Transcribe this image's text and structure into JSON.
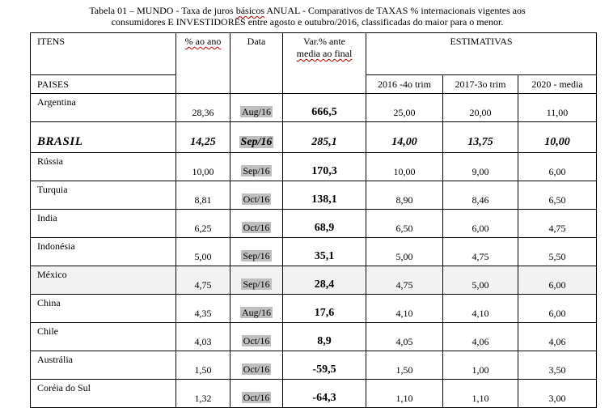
{
  "caption": {
    "line1_a": "Tabela 01 – MUNDO  - Taxa de juros ",
    "line1_sq1": "básicos",
    "line1_b": " ANUAL  - Comparativos de TAXAS  % internacionais vigentes aos",
    "line2": "consumidores E INVESTIDORES  entre agosto e outubro/2016, classificadas do maior para o menor."
  },
  "header": {
    "itens": "ITENS",
    "pct_ao_ano": "% ao ano",
    "data": "Data",
    "var_line1": "Var.% ante",
    "var_line2": "media ao final",
    "estimativas": "ESTIMATIVAS",
    "paises": "PAISES",
    "est_2016": "2016 -4o trim",
    "est_2017": "2017-3o trim",
    "est_2020": "2020 - media"
  },
  "rows": [
    {
      "pais": "Argentina",
      "pct": "28,36",
      "data": "Aug/16",
      "var": "666,5",
      "e2016": "25,00",
      "e2017": "20,00",
      "e2020": "11,00"
    },
    {
      "pais": "BRASIL",
      "pct": "14,25",
      "data": "Sep/16",
      "var": "285,1",
      "e2016": "14,00",
      "e2017": "13,75",
      "e2020": "10,00"
    },
    {
      "pais": "Rússia",
      "pct": "10,00",
      "data": "Sep/16",
      "var": "170,3",
      "e2016": "10,00",
      "e2017": "9,00",
      "e2020": "6,00"
    },
    {
      "pais": "Turquia",
      "pct": "8,81",
      "data": "Oct/16",
      "var": "138,1",
      "e2016": "8,90",
      "e2017": "8,46",
      "e2020": "6,50"
    },
    {
      "pais": "India",
      "pct": "6,25",
      "data": "Oct/16",
      "var": "68,9",
      "e2016": "6,50",
      "e2017": "6,00",
      "e2020": "4,75"
    },
    {
      "pais": "Indonésia",
      "pct": "5,00",
      "data": "Sep/16",
      "var": "35,1",
      "e2016": "5,00",
      "e2017": "4,75",
      "e2020": "5,50"
    },
    {
      "pais": "México",
      "pct": "4,75",
      "data": "Sep/16",
      "var": "28,4",
      "e2016": "4,75",
      "e2017": "5,00",
      "e2020": "6,00"
    },
    {
      "pais": "China",
      "pct": "4,35",
      "data": "Aug/16",
      "var": "17,6",
      "e2016": "4,10",
      "e2017": "4,10",
      "e2020": "6,00"
    },
    {
      "pais": "Chile",
      "pct": "4,03",
      "data": "Oct/16",
      "var": "8,9",
      "e2016": "4,05",
      "e2017": "4,06",
      "e2020": "4,06"
    },
    {
      "pais": "Austrália",
      "pct": "1,50",
      "data": "Oct/16",
      "var": "-59,5",
      "e2016": "1,50",
      "e2017": "1,00",
      "e2020": "3,50"
    },
    {
      "pais": "Coréia do Sul",
      "pct": "1,32",
      "data": "Oct/16",
      "var": "-64,3",
      "e2016": "1,10",
      "e2017": "1,10",
      "e2020": "3,00"
    }
  ],
  "colors": {
    "date_badge": "#bfbfbf",
    "spellcheck_squiggle": "#c00000",
    "shaded_row": "#f2f2f2"
  }
}
